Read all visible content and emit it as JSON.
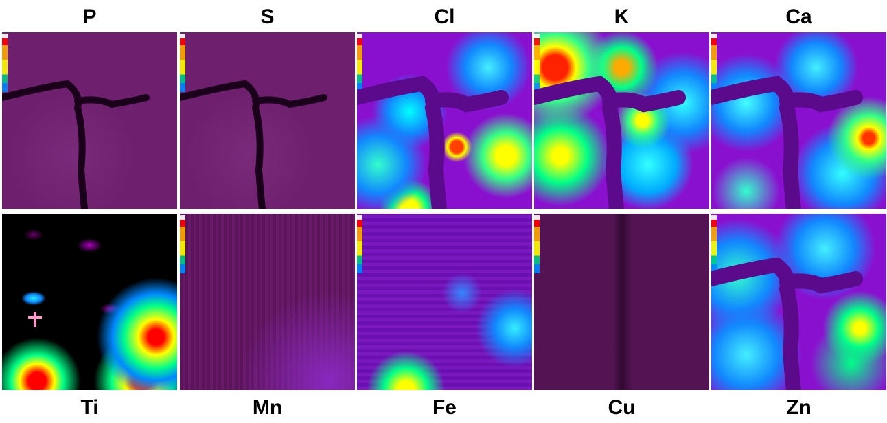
{
  "panels": {
    "top": [
      "P",
      "S",
      "Cl",
      "K",
      "Ca"
    ],
    "bottom": [
      "Ti",
      "Mn",
      "Fe",
      "Cu",
      "Zn"
    ]
  }
}
